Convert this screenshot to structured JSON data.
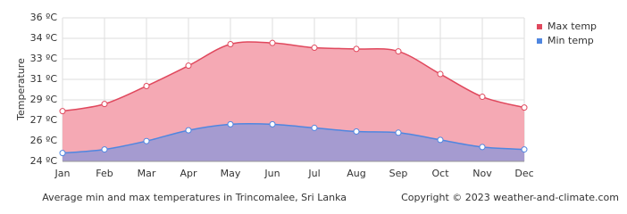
{
  "chart_data": {
    "type": "area",
    "y_label": "Temperature",
    "caption": "Average min and max temperatures in Trincomalee, Sri Lanka",
    "copyright": "Copyright © 2023  weather-and-climate.com",
    "categories": [
      "Jan",
      "Feb",
      "Mar",
      "Apr",
      "May",
      "Jun",
      "Jul",
      "Aug",
      "Sep",
      "Oct",
      "Nov",
      "Dec"
    ],
    "series": [
      {
        "name": "Max temp",
        "color": "#e0485d",
        "fill": "#f5a9b4",
        "values": [
          28.2,
          28.8,
          30.3,
          32.0,
          33.8,
          33.9,
          33.5,
          33.4,
          33.2,
          31.3,
          29.4,
          28.5
        ]
      },
      {
        "name": "Min temp",
        "color": "#4f86e0",
        "fill": "#a59bd0",
        "values": [
          24.7,
          25.0,
          25.7,
          26.6,
          27.1,
          27.1,
          26.8,
          26.5,
          26.4,
          25.8,
          25.2,
          25.0
        ]
      }
    ],
    "ylim": [
      24,
      36
    ],
    "yticks": [
      {
        "value": 24,
        "label": "24 ºC"
      },
      {
        "value": 25.71,
        "label": "26 ºC"
      },
      {
        "value": 27.43,
        "label": "27 ºC"
      },
      {
        "value": 29.14,
        "label": "29 ºC"
      },
      {
        "value": 30.86,
        "label": "31 ºC"
      },
      {
        "value": 32.57,
        "label": "33 ºC"
      },
      {
        "value": 34.29,
        "label": "34 ºC"
      },
      {
        "value": 36,
        "label": "36 ºC"
      }
    ],
    "grid": true,
    "legend": "right"
  }
}
